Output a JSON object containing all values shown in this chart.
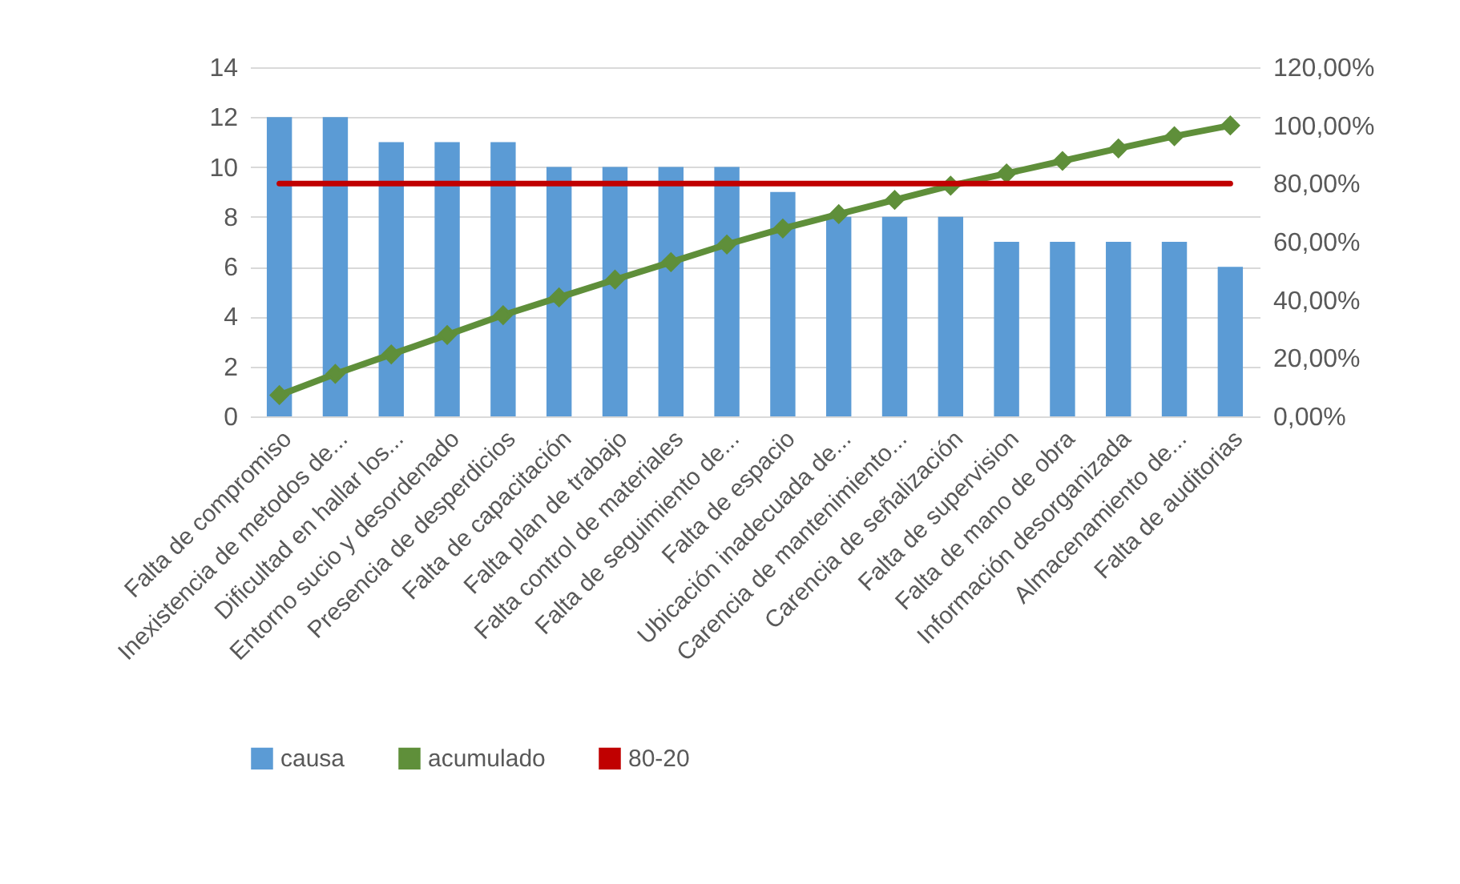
{
  "chart_data": {
    "type": "bar",
    "categories": [
      "Falta de compromiso",
      "Inexistencia de metodos de...",
      "Dificultad en hallar los...",
      "Entorno sucio y desordenado",
      "Presencia de desperdicios",
      "Falta de capacitación",
      "Falta plan de trabajo",
      "Falta control de materiales",
      "Falta de seguimiento de...",
      "Falta de espacio",
      "Ubicación inadecuada de...",
      "Carencia de mantenimiento...",
      "Carencia de señalización",
      "Falta de supervision",
      "Falta de mano de obra",
      "Información desorganizada",
      "Almacenamiento de...",
      "Falta de auditorias"
    ],
    "series": [
      {
        "name": "causa",
        "color": "#5b9bd5",
        "values": [
          12,
          12,
          11,
          11,
          11,
          10,
          10,
          10,
          10,
          9,
          8,
          8,
          8,
          7,
          7,
          7,
          7,
          6
        ]
      },
      {
        "name": "acumulado",
        "type": "line",
        "axis": "y2",
        "color": "#5f8f3a",
        "marker": "diamond",
        "values": [
          7.3,
          14.6,
          21.3,
          28.0,
          34.8,
          40.9,
          47.0,
          53.0,
          59.1,
          64.6,
          69.5,
          74.4,
          79.3,
          83.5,
          87.8,
          92.1,
          96.3,
          100
        ]
      },
      {
        "name": "80-20",
        "type": "line",
        "axis": "y2",
        "color": "#c00000",
        "values": [
          80,
          80,
          80,
          80,
          80,
          80,
          80,
          80,
          80,
          80,
          80,
          80,
          80,
          80,
          80,
          80,
          80,
          80
        ]
      }
    ],
    "ylim": [
      0,
      14
    ],
    "yticks": [
      0,
      2,
      4,
      6,
      8,
      10,
      12,
      14
    ],
    "y2lim": [
      0,
      120
    ],
    "y2ticks": [
      {
        "value": 0,
        "label": "0,00%"
      },
      {
        "value": 20,
        "label": "20,00%"
      },
      {
        "value": 40,
        "label": "40,00%"
      },
      {
        "value": 60,
        "label": "60,00%"
      },
      {
        "value": 80,
        "label": "80,00%"
      },
      {
        "value": 100,
        "label": "100,00%"
      },
      {
        "value": 120,
        "label": "120,00%"
      }
    ],
    "grid": "y",
    "legend": "bottom"
  }
}
